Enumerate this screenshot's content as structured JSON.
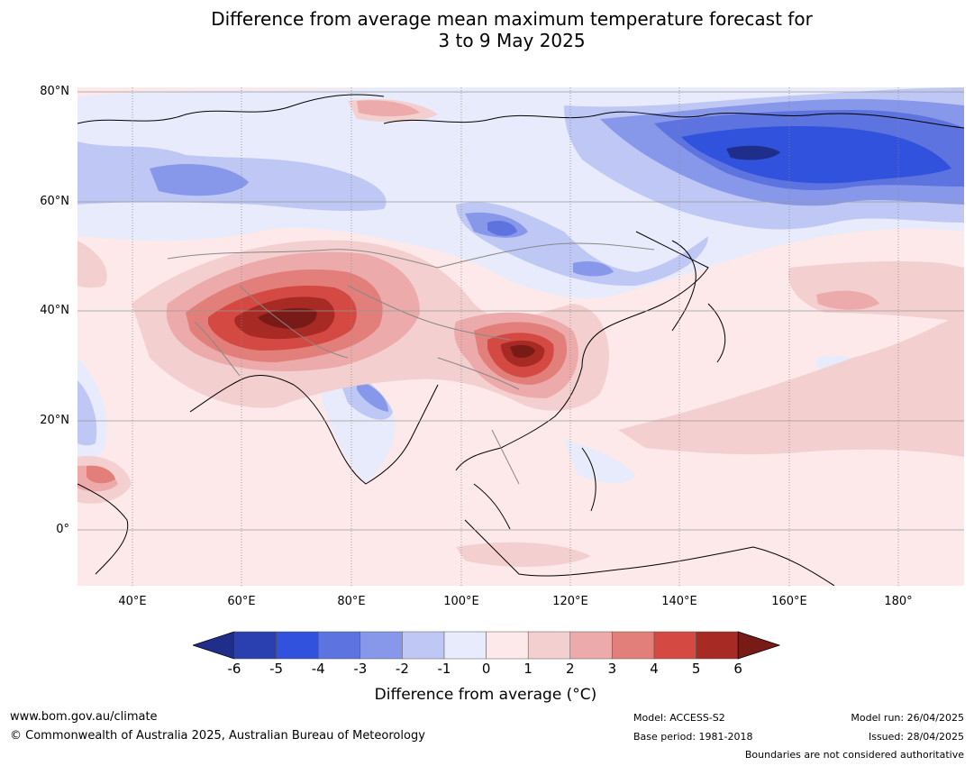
{
  "title_line1": "Difference from average mean maximum temperature forecast for",
  "title_line2": "3 to 9 May 2025",
  "map": {
    "lat_labels": [
      "80°N",
      "60°N",
      "40°N",
      "20°N",
      "0°"
    ],
    "lon_labels": [
      "40°E",
      "60°E",
      "80°E",
      "100°E",
      "120°E",
      "140°E",
      "160°E",
      "180°"
    ]
  },
  "colorbar": {
    "ticks": [
      "-6",
      "-5",
      "-4",
      "-3",
      "-2",
      "-1",
      "0",
      "1",
      "2",
      "3",
      "4",
      "5",
      "6"
    ],
    "colors": [
      "#1f2e8a",
      "#2a3fb0",
      "#3152dc",
      "#5d73e0",
      "#8797ea",
      "#bfc8f4",
      "#e8ebfb",
      "#fde9e9",
      "#f4cfcf",
      "#ecaaaa",
      "#e27f7b",
      "#d44a42",
      "#a82a24",
      "#781a16"
    ],
    "label": "Difference from average (°C)"
  },
  "footer": {
    "website": "www.bom.gov.au/climate",
    "copyright": "© Commonwealth of Australia 2025, Australian Bureau of Meteorology",
    "model": "Model: ACCESS-S2",
    "base_period": "Base period: 1981-2018",
    "model_run": "Model run: 26/04/2025",
    "issued": "Issued: 28/04/2025",
    "boundaries_note": "Boundaries are not considered authoritative"
  }
}
